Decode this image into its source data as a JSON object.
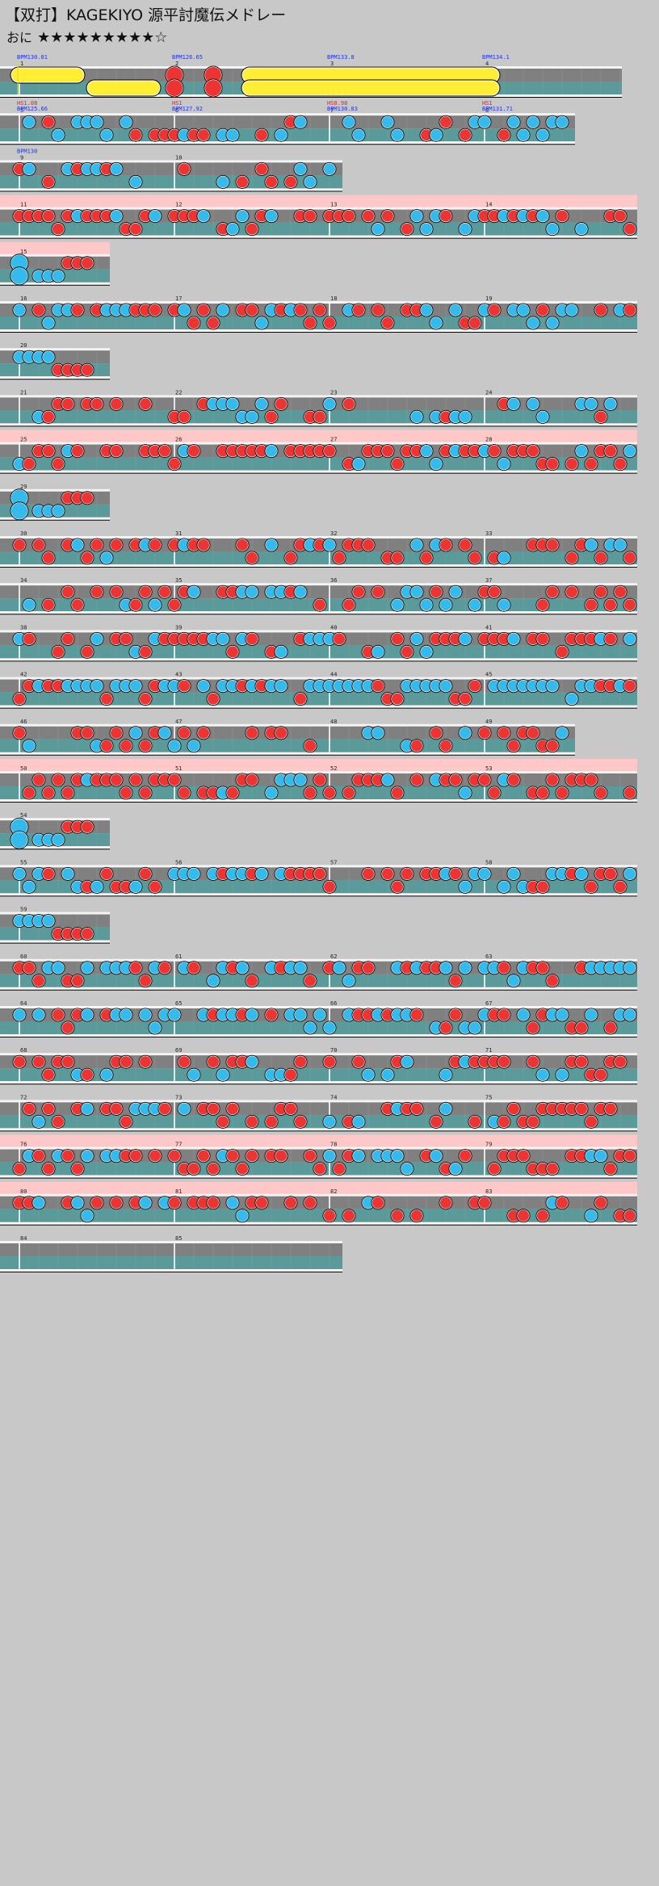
{
  "song": {
    "title": "【双打】KAGEKIYO 源平討魔伝メドレー",
    "course_label": "おに",
    "stars": "★★★★★★★★★☆"
  },
  "colors": {
    "page_bg": "#c8c8c8",
    "lane_top": "#808080",
    "lane_bottom": "#5a9a9a",
    "gogo_band": "#ffc8c8",
    "don": "#ee3333",
    "ka": "#33bbee",
    "roll": "#ffee33",
    "bpm_text": "#2233dd",
    "hs_text": "#dd2222"
  },
  "rows": [
    {
      "measures": [
        {
          "num": "1",
          "events": [
            "BPM130.81"
          ]
        },
        {
          "num": "2",
          "events": [
            "BPM126.65"
          ]
        },
        {
          "num": "3",
          "events": [
            "BPM133.8"
          ]
        },
        {
          "num": "4",
          "events": [
            "BPM134.1"
          ]
        }
      ],
      "len": 4,
      "gogo": false,
      "pattern": "rolls"
    },
    {
      "measures": [
        {
          "num": "5",
          "events": [
            "HS1.08",
            "BPM125.66"
          ]
        },
        {
          "num": "6",
          "events": [
            "HS1",
            "BPM127.92"
          ]
        },
        {
          "num": "7",
          "events": [
            "HS0.98",
            "BPM130.83"
          ]
        },
        {
          "num": "8",
          "events": [
            "HS1",
            "BPM131.71"
          ]
        }
      ],
      "len": 3.7,
      "gogo": false,
      "pattern": "a"
    },
    {
      "measures": [
        {
          "num": "9",
          "events": [
            "BPM130"
          ]
        },
        {
          "num": "10",
          "events": []
        }
      ],
      "len": 2.2,
      "gogo": false,
      "pattern": "b"
    },
    {
      "measures": [
        {
          "num": "11",
          "events": []
        },
        {
          "num": "12",
          "events": []
        },
        {
          "num": "13",
          "events": []
        },
        {
          "num": "14",
          "events": []
        }
      ],
      "len": 4.1,
      "gogo": true,
      "pattern": "dense"
    },
    {
      "measures": [
        {
          "num": "15",
          "events": []
        }
      ],
      "len": 0.7,
      "gogo": true,
      "pattern": "short"
    },
    {
      "measures": [
        {
          "num": "16",
          "events": []
        },
        {
          "num": "17",
          "events": []
        },
        {
          "num": "18",
          "events": []
        },
        {
          "num": "19",
          "events": []
        }
      ],
      "len": 4.1,
      "gogo": false,
      "pattern": "mixed"
    },
    {
      "measures": [
        {
          "num": "20",
          "events": []
        }
      ],
      "len": 0.7,
      "gogo": false,
      "pattern": "short2"
    },
    {
      "measures": [
        {
          "num": "21",
          "events": []
        },
        {
          "num": "22",
          "events": []
        },
        {
          "num": "23",
          "events": []
        },
        {
          "num": "24",
          "events": []
        }
      ],
      "len": 4.1,
      "gogo": false,
      "pattern": "sparse"
    },
    {
      "measures": [
        {
          "num": "25",
          "events": []
        },
        {
          "num": "26",
          "events": []
        },
        {
          "num": "27",
          "events": []
        },
        {
          "num": "28",
          "events": []
        }
      ],
      "len": 4.1,
      "gogo": true,
      "pattern": "dense"
    },
    {
      "measures": [
        {
          "num": "29",
          "events": []
        }
      ],
      "len": 0.7,
      "gogo": false,
      "pattern": "short"
    },
    {
      "measures": [
        {
          "num": "30",
          "events": []
        },
        {
          "num": "31",
          "events": []
        },
        {
          "num": "32",
          "events": []
        },
        {
          "num": "33",
          "events": []
        }
      ],
      "len": 4.1,
      "gogo": false,
      "pattern": "mixed"
    },
    {
      "measures": [
        {
          "num": "34",
          "events": []
        },
        {
          "num": "35",
          "events": []
        },
        {
          "num": "36",
          "events": []
        },
        {
          "num": "37",
          "events": []
        }
      ],
      "len": 4.1,
      "gogo": false,
      "pattern": "mixed2"
    },
    {
      "measures": [
        {
          "num": "38",
          "events": []
        },
        {
          "num": "39",
          "events": []
        },
        {
          "num": "40",
          "events": []
        },
        {
          "num": "41",
          "events": []
        }
      ],
      "len": 4.1,
      "gogo": false,
      "pattern": "dense"
    },
    {
      "measures": [
        {
          "num": "42",
          "events": []
        },
        {
          "num": "43",
          "events": []
        },
        {
          "num": "44",
          "events": []
        },
        {
          "num": "45",
          "events": []
        }
      ],
      "len": 4.1,
      "gogo": false,
      "pattern": "dense2"
    },
    {
      "measures": [
        {
          "num": "46",
          "events": []
        },
        {
          "num": "47",
          "events": []
        },
        {
          "num": "48",
          "events": []
        },
        {
          "num": "49",
          "events": []
        }
      ],
      "len": 3.7,
      "gogo": false,
      "pattern": "sparse"
    },
    {
      "measures": [
        {
          "num": "50",
          "events": []
        },
        {
          "num": "51",
          "events": []
        },
        {
          "num": "52",
          "events": []
        },
        {
          "num": "53",
          "events": []
        }
      ],
      "len": 4.1,
      "gogo": true,
      "pattern": "dense"
    },
    {
      "measures": [
        {
          "num": "54",
          "events": []
        }
      ],
      "len": 0.7,
      "gogo": false,
      "pattern": "short"
    },
    {
      "measures": [
        {
          "num": "55",
          "events": []
        },
        {
          "num": "56",
          "events": []
        },
        {
          "num": "57",
          "events": []
        },
        {
          "num": "58",
          "events": []
        }
      ],
      "len": 4.1,
      "gogo": false,
      "pattern": "mixed"
    },
    {
      "measures": [
        {
          "num": "59",
          "events": []
        }
      ],
      "len": 0.7,
      "gogo": false,
      "pattern": "short2"
    },
    {
      "measures": [
        {
          "num": "60",
          "events": []
        },
        {
          "num": "61",
          "events": []
        },
        {
          "num": "62",
          "events": []
        },
        {
          "num": "63",
          "events": []
        }
      ],
      "len": 4.1,
      "gogo": false,
      "pattern": "dense2"
    },
    {
      "measures": [
        {
          "num": "64",
          "events": []
        },
        {
          "num": "65",
          "events": []
        },
        {
          "num": "66",
          "events": []
        },
        {
          "num": "67",
          "events": []
        }
      ],
      "len": 4.1,
      "gogo": false,
      "pattern": "dense2"
    },
    {
      "measures": [
        {
          "num": "68",
          "events": []
        },
        {
          "num": "69",
          "events": []
        },
        {
          "num": "70",
          "events": []
        },
        {
          "num": "71",
          "events": []
        }
      ],
      "len": 4.1,
      "gogo": false,
      "pattern": "mixed2"
    },
    {
      "measures": [
        {
          "num": "72",
          "events": []
        },
        {
          "num": "73",
          "events": []
        },
        {
          "num": "74",
          "events": []
        },
        {
          "num": "75",
          "events": []
        }
      ],
      "len": 4.1,
      "gogo": false,
      "pattern": "mixed"
    },
    {
      "measures": [
        {
          "num": "76",
          "events": []
        },
        {
          "num": "77",
          "events": []
        },
        {
          "num": "78",
          "events": []
        },
        {
          "num": "79",
          "events": []
        }
      ],
      "len": 4.1,
      "gogo": true,
      "pattern": "dense"
    },
    {
      "measures": [
        {
          "num": "80",
          "events": []
        },
        {
          "num": "81",
          "events": []
        },
        {
          "num": "82",
          "events": []
        },
        {
          "num": "83",
          "events": []
        }
      ],
      "len": 4.1,
      "gogo": true,
      "pattern": "sparse"
    },
    {
      "measures": [
        {
          "num": "84",
          "events": []
        },
        {
          "num": "85",
          "events": []
        }
      ],
      "len": 2.2,
      "gogo": false,
      "pattern": "empty"
    }
  ]
}
